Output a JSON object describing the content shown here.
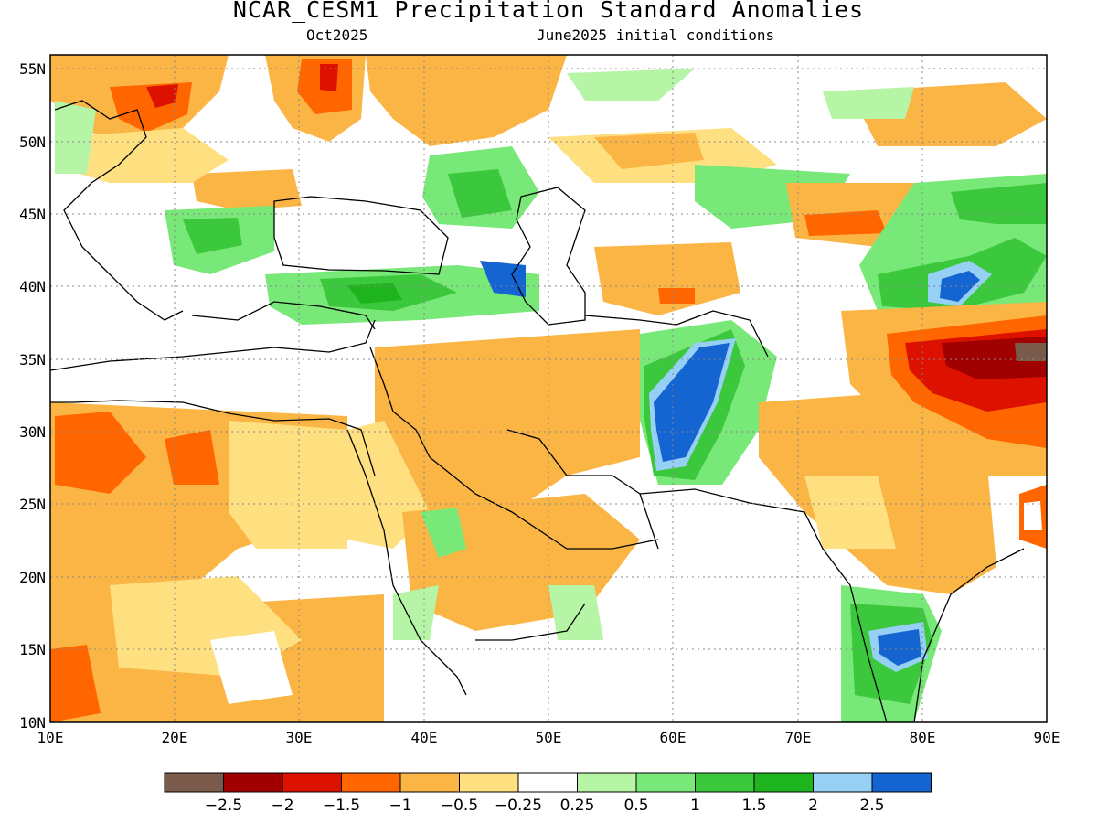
{
  "header": {
    "title": "NCAR_CESM1 Precipitation Standard Anomalies",
    "lead_month": "Oct2025",
    "init_conditions": "June2025 initial conditions"
  },
  "map": {
    "lon_min": 10,
    "lon_max": 90,
    "lat_min": 10,
    "lat_max": 56,
    "lon_ticks": [
      "10E",
      "20E",
      "30E",
      "40E",
      "50E",
      "60E",
      "70E",
      "80E",
      "90E"
    ],
    "lat_ticks": [
      "55N",
      "50N",
      "45N",
      "40N",
      "35N",
      "30N",
      "25N",
      "20N",
      "15N",
      "10N"
    ]
  },
  "colorbar": {
    "colors": [
      "#7a5a4a",
      "#a00000",
      "#dd1100",
      "#ff6600",
      "#fbb545",
      "#ffe080",
      "#ffffff",
      "#b5f5a5",
      "#78e878",
      "#3cc83c",
      "#1eb41e",
      "#96d0f5",
      "#1464d2"
    ],
    "labels": [
      "−2.5",
      "−2",
      "−1.5",
      "−1",
      "−0.5",
      "−0.25",
      "0.25",
      "0.5",
      "1",
      "1.5",
      "2",
      "2.5"
    ]
  }
}
